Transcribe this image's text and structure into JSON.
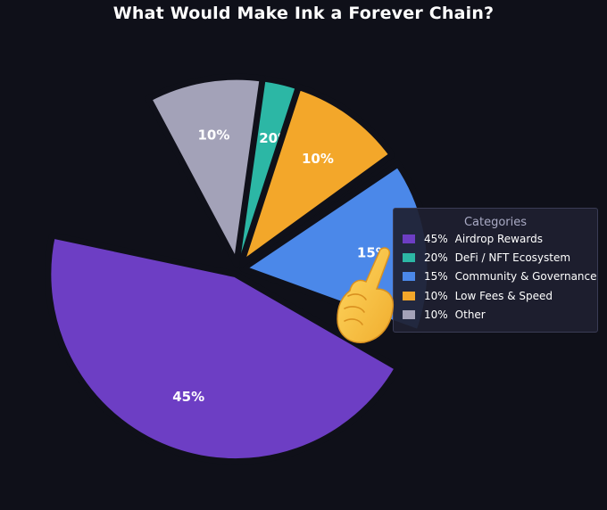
{
  "title": "What Would Make Ink a Forever Chain?",
  "legend": {
    "title": "Categories"
  },
  "chart_data": {
    "type": "pie",
    "title": "What Would Make Ink a Forever Chain?",
    "legend_title": "Categories",
    "legend_position": "right",
    "slices": [
      {
        "label": "Airdrop Rewards",
        "value": 45,
        "value_label": "45%",
        "color": "#6d3ec4"
      },
      {
        "label": "DeFi / NFT Ecosystem",
        "value": 20,
        "value_label": "20%",
        "color": "#2cb7a5"
      },
      {
        "label": "Community & Governance",
        "value": 15,
        "value_label": "15%",
        "color": "#4b88e9"
      },
      {
        "label": "Low Fees & Speed",
        "value": 10,
        "value_label": "10%",
        "color": "#f3a72a"
      },
      {
        "label": "Other",
        "value": 10,
        "value_label": "10%",
        "color": "#a3a2b8"
      }
    ]
  },
  "overlay_icon": "pointing-hand-icon"
}
